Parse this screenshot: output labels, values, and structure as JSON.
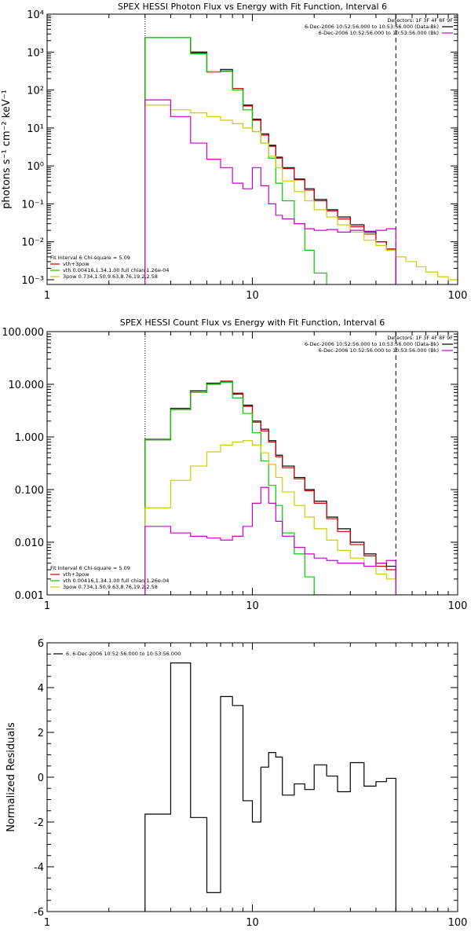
{
  "chart_data": [
    {
      "type": "line",
      "title": "SPEX HESSI Photon Flux vs Energy with Fit Function, Interval 6",
      "xlabel": "",
      "ylabel": "photons s⁻¹ cm⁻² keV⁻¹",
      "x_scale": "log",
      "y_scale": "log",
      "xlim": [
        1,
        100
      ],
      "ylim": [
        0.00075,
        10000
      ],
      "x_ticks": [
        1,
        10,
        100
      ],
      "x_tick_labels": [
        "1",
        "10",
        "100"
      ],
      "y_ticks": [
        0.001,
        0.01,
        0.1,
        1,
        10,
        100,
        1000,
        10000
      ],
      "y_tick_labels": [
        "10⁻³",
        "10⁻²",
        "10⁻¹",
        "10⁰",
        "10¹",
        "10²",
        "10³",
        "10⁴"
      ],
      "vlines": [
        {
          "x": 3,
          "style": "dotted",
          "color": "#000000"
        },
        {
          "x": 50,
          "style": "dashed",
          "color": "#000000"
        }
      ],
      "header_lines": [
        {
          "text": "Detectors: 1F 3F 4F 8F 9F",
          "color": "#000000"
        },
        {
          "text": "6-Dec-2006 10:52:56.000 to 10:53:56.000 (Data-Bk)",
          "color": "#000000",
          "swatch": "#000000"
        },
        {
          "text": "6-Dec-2006 10:52:56.000 to 10:53:56.000 (Bk)",
          "color": "#000000",
          "swatch": "#cc00cc"
        }
      ],
      "fit_lines": [
        {
          "text": "Fit Interval 6   Chi-square = 5.09",
          "color": "#000000",
          "swatch": null
        },
        {
          "text": "vth+3pow",
          "color": "#000000",
          "swatch": "#cc0000"
        },
        {
          "text": "vth 0.00416,1.34,1.00  full chian 1.26e-04",
          "color": "#000000",
          "swatch": "#00cc00"
        },
        {
          "text": "3pow 0.734,1.50,9.63,8.76,19.2,2.58",
          "color": "#000000",
          "swatch": "#cccc00"
        }
      ],
      "series": [
        {
          "color": "#000000",
          "edges": [
            3,
            4,
            5,
            6,
            7,
            8,
            9,
            10,
            11,
            12,
            13,
            14,
            16,
            18,
            20,
            23,
            26,
            30,
            35,
            40,
            45,
            50
          ],
          "values": [
            2400,
            2400,
            1000,
            300,
            350,
            110,
            40,
            17,
            7,
            3.5,
            1.7,
            0.9,
            0.45,
            0.25,
            0.13,
            0.07,
            0.045,
            0.028,
            0.018,
            0.01,
            0.006
          ]
        },
        {
          "color": "#cc0000",
          "edges": [
            3,
            4,
            5,
            6,
            7,
            8,
            9,
            10,
            11,
            12,
            13,
            14,
            16,
            18,
            20,
            23,
            26,
            30,
            35,
            40,
            45,
            50
          ],
          "values": [
            2400,
            2400,
            950,
            300,
            320,
            110,
            38,
            16,
            6.5,
            3.3,
            1.6,
            0.85,
            0.43,
            0.23,
            0.12,
            0.065,
            0.04,
            0.025,
            0.016,
            0.01,
            0.0065
          ]
        },
        {
          "color": "#00cc00",
          "edges": [
            3,
            4,
            5,
            6,
            7,
            8,
            9,
            10,
            11,
            12,
            13,
            14,
            16,
            18,
            20,
            23
          ],
          "values": [
            2400,
            2400,
            900,
            300,
            310,
            100,
            30,
            8,
            4,
            1.6,
            0.35,
            0.12,
            0.03,
            0.006,
            0.0015
          ]
        },
        {
          "color": "#cccc00",
          "edges": [
            3,
            4,
            5,
            6,
            7,
            8,
            9,
            10,
            11,
            12,
            13,
            14,
            16,
            18,
            20,
            23,
            26,
            30,
            35,
            40,
            45,
            50,
            56,
            63,
            70,
            80,
            90,
            100
          ],
          "values": [
            40,
            30,
            25,
            20,
            16,
            13,
            10,
            8,
            4,
            1.8,
            0.9,
            0.4,
            0.21,
            0.12,
            0.07,
            0.045,
            0.028,
            0.018,
            0.011,
            0.008,
            0.006,
            0.004,
            0.003,
            0.0022,
            0.0016,
            0.0012,
            0.001
          ]
        },
        {
          "color": "#cc00cc",
          "edges": [
            3,
            4,
            5,
            6,
            7,
            8,
            9,
            10,
            11,
            12,
            13,
            14,
            16,
            18,
            20,
            23,
            26,
            30,
            35,
            40,
            45,
            50
          ],
          "values": [
            55,
            20,
            4,
            1.5,
            0.9,
            0.35,
            0.25,
            0.9,
            0.3,
            0.1,
            0.05,
            0.04,
            0.03,
            0.022,
            0.02,
            0.021,
            0.018,
            0.02,
            0.019,
            0.02,
            0.022
          ]
        }
      ]
    },
    {
      "type": "line",
      "title": "SPEX HESSI Count Flux vs Energy with Fit Function, Interval 6",
      "xlabel": "",
      "ylabel": "",
      "x_scale": "log",
      "y_scale": "log",
      "xlim": [
        1,
        100
      ],
      "ylim": [
        0.001,
        100
      ],
      "x_ticks": [
        1,
        10,
        100
      ],
      "x_tick_labels": [
        "1",
        "10",
        "100"
      ],
      "y_ticks": [
        0.001,
        0.01,
        0.1,
        1,
        10,
        100
      ],
      "y_tick_labels": [
        "0.001",
        "0.010",
        "0.100",
        "1.000",
        "10.000",
        "100.000"
      ],
      "vlines": [
        {
          "x": 3,
          "style": "dotted",
          "color": "#000000"
        },
        {
          "x": 50,
          "style": "dashed",
          "color": "#000000"
        }
      ],
      "header_lines": [
        {
          "text": "Detectors: 1F 3F 4F 8F 9F",
          "color": "#000000"
        },
        {
          "text": "6-Dec-2006 10:52:56.000 to 10:53:56.000 (Data-Bk)",
          "color": "#000000",
          "swatch": "#000000"
        },
        {
          "text": "6-Dec-2006 10:52:56.000 to 10:53:56.000 (Bk)",
          "color": "#000000",
          "swatch": "#cc00cc"
        }
      ],
      "fit_lines": [
        {
          "text": "Fit Interval 6   Chi-square = 5.09",
          "color": "#000000",
          "swatch": null
        },
        {
          "text": "vth+3pow",
          "color": "#000000",
          "swatch": "#cc0000"
        },
        {
          "text": "vth 0.00416,1.34,1.00  full chian 1.26e-04",
          "color": "#000000",
          "swatch": "#00cc00"
        },
        {
          "text": "3pow 0.734,1.50,9.63,8.76,19.2,2.58",
          "color": "#000000",
          "swatch": "#cccc00"
        }
      ],
      "series": [
        {
          "color": "#000000",
          "edges": [
            3,
            4,
            5,
            6,
            7,
            8,
            9,
            10,
            11,
            12,
            13,
            14,
            16,
            18,
            20,
            23,
            26,
            30,
            35,
            40,
            45,
            50
          ],
          "values": [
            0.9,
            3.5,
            7.5,
            10.5,
            11,
            6.5,
            4,
            2,
            1.4,
            0.85,
            0.45,
            0.28,
            0.17,
            0.1,
            0.06,
            0.03,
            0.018,
            0.01,
            0.006,
            0.004,
            0.0035
          ]
        },
        {
          "color": "#cc0000",
          "edges": [
            3,
            4,
            5,
            6,
            7,
            8,
            9,
            10,
            11,
            12,
            13,
            14,
            16,
            18,
            20,
            23,
            26,
            30,
            35,
            40,
            45,
            50
          ],
          "values": [
            0.88,
            3.3,
            7,
            10,
            11.5,
            6.8,
            3.8,
            1.9,
            1.3,
            0.8,
            0.42,
            0.26,
            0.16,
            0.095,
            0.055,
            0.028,
            0.016,
            0.009,
            0.0055,
            0.0035,
            0.003
          ]
        },
        {
          "color": "#00cc00",
          "edges": [
            3,
            4,
            5,
            6,
            7,
            8,
            9,
            10,
            11,
            12,
            13,
            14,
            16,
            18,
            20,
            23
          ],
          "values": [
            0.88,
            3.3,
            7,
            10,
            11,
            5.5,
            2.8,
            1.2,
            0.35,
            0.12,
            0.05,
            0.015,
            0.006,
            0.0022,
            0.001
          ]
        },
        {
          "color": "#cccc00",
          "edges": [
            3,
            4,
            5,
            6,
            7,
            8,
            9,
            10,
            11,
            12,
            13,
            14,
            16,
            18,
            20,
            23,
            26,
            30,
            35,
            40,
            45,
            50,
            56
          ],
          "values": [
            0.045,
            0.15,
            0.28,
            0.52,
            0.7,
            0.8,
            0.85,
            0.7,
            0.5,
            0.3,
            0.17,
            0.09,
            0.05,
            0.03,
            0.018,
            0.011,
            0.007,
            0.005,
            0.0035,
            0.0025,
            0.002,
            0.001
          ]
        },
        {
          "color": "#cc00cc",
          "edges": [
            3,
            4,
            5,
            6,
            7,
            8,
            9,
            10,
            11,
            12,
            13,
            14,
            16,
            18,
            20,
            23,
            26,
            30,
            35,
            40,
            45,
            50
          ],
          "values": [
            0.02,
            0.015,
            0.013,
            0.012,
            0.011,
            0.013,
            0.02,
            0.055,
            0.11,
            0.055,
            0.025,
            0.013,
            0.008,
            0.006,
            0.005,
            0.0045,
            0.004,
            0.004,
            0.0035,
            0.004,
            0.0045
          ]
        }
      ]
    },
    {
      "type": "line",
      "title": "",
      "xlabel": "",
      "ylabel": "Normalized Residuals",
      "x_scale": "log",
      "y_scale": "linear",
      "xlim": [
        1,
        100
      ],
      "ylim": [
        -6,
        6
      ],
      "x_ticks": [
        1,
        10,
        100
      ],
      "x_tick_labels": [
        "1",
        "10",
        "100"
      ],
      "y_ticks": [
        -6,
        -4,
        -2,
        0,
        2,
        4,
        6
      ],
      "y_tick_labels": [
        "-6",
        "-4",
        "-2",
        "0",
        "2",
        "4",
        "6"
      ],
      "legend": [
        {
          "text": "6.  6-Dec-2006 10:52:56.000 to 10:53:56.000",
          "color": "#000000",
          "swatch": "#000000"
        }
      ],
      "series": [
        {
          "color": "#000000",
          "edges": [
            3,
            4,
            5,
            6,
            7,
            8,
            9,
            10,
            11,
            12,
            13,
            14,
            16,
            18,
            20,
            23,
            26,
            30,
            35,
            40,
            45,
            50
          ],
          "values": [
            -1.65,
            5.1,
            -1.8,
            -5.15,
            3.6,
            3.2,
            -1.05,
            -2.0,
            0.45,
            1.1,
            0.9,
            -0.8,
            -0.3,
            -0.55,
            0.55,
            0.05,
            -0.65,
            0.65,
            -0.4,
            -0.2,
            -0.05
          ],
          "drop_to_bottom": true
        }
      ]
    }
  ]
}
